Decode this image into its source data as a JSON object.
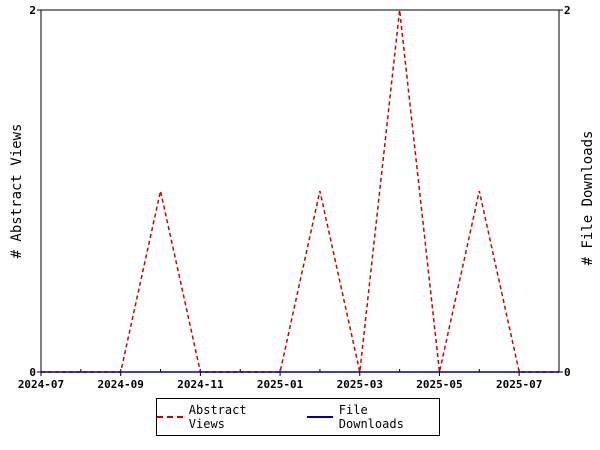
{
  "chart_data": {
    "type": "line",
    "x_type": "date",
    "x": [
      "2024-07",
      "2024-08",
      "2024-09",
      "2024-10",
      "2024-11",
      "2024-12",
      "2025-01",
      "2025-02",
      "2025-03",
      "2025-04",
      "2025-05",
      "2025-06",
      "2025-07",
      "2025-08"
    ],
    "x_ticks": [
      "2024-07",
      "2024-09",
      "2024-11",
      "2025-01",
      "2025-03",
      "2025-05",
      "2025-07"
    ],
    "xlim": [
      "2024-07",
      "2025-08"
    ],
    "ylim": [
      0,
      2
    ],
    "y_ticks": [
      "0",
      "2"
    ],
    "y2lim": [
      0,
      2
    ],
    "y2_ticks": [
      "0",
      "2"
    ],
    "ylabel": "# Abstract Views",
    "y2label": "# File Downloads",
    "grid": false,
    "legend_position": "bottom",
    "series": [
      {
        "name": "Abstract Views",
        "axis": "left",
        "style": "dashed",
        "color": "#cc0000",
        "values": [
          0,
          0,
          0,
          1,
          0,
          0,
          0,
          1,
          0,
          2,
          0,
          1,
          0,
          0
        ]
      },
      {
        "name": "File Downloads",
        "axis": "right",
        "style": "solid",
        "color": "#000099",
        "values": [
          0,
          0,
          0,
          0,
          0,
          0,
          0,
          0,
          0,
          0,
          0,
          0,
          0,
          0
        ]
      }
    ]
  }
}
